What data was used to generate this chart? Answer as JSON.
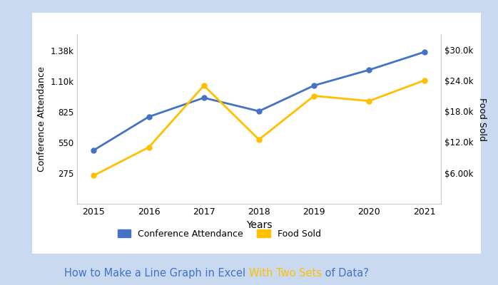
{
  "years": [
    2015,
    2016,
    2017,
    2018,
    2019,
    2020,
    2021
  ],
  "conference_attendance": [
    480,
    780,
    950,
    830,
    1060,
    1200,
    1360
  ],
  "food_sold": [
    5500,
    11000,
    23000,
    12500,
    21000,
    20000,
    24000
  ],
  "line1_color": "#4472C4",
  "line2_color": "#FFC000",
  "ylabel_left": "Conference Attendance",
  "ylabel_right": "Food Sold",
  "xlabel": "Years",
  "ylim_left": [
    0,
    1520
  ],
  "ylim_right": [
    0,
    33000
  ],
  "yticks_left": [
    275,
    550,
    825,
    1100,
    1375
  ],
  "ytick_labels_left": [
    "275",
    "550",
    "825",
    "1.10k",
    "1.38k"
  ],
  "yticks_right": [
    6000,
    12000,
    18000,
    24000,
    30000
  ],
  "ytick_labels_right": [
    "$6.00k",
    "$12.0k",
    "$18.0k",
    "$24.0k",
    "$30.0k"
  ],
  "legend_label1": "Conference Attendance",
  "legend_label2": "Food Sold",
  "title_part1": "How to Make a Line Graph in Excel ",
  "title_part2": "With Two Sets",
  "title_part3": " of Data?",
  "title_color1": "#4472C4",
  "title_color2": "#FFC000",
  "title_color3": "#4472C4",
  "background_color": "#FFFFFF",
  "outer_bg_color": "#C9D9F0",
  "marker_style": "o",
  "marker_size": 5,
  "line_width": 2,
  "spine_color": "#CCCCCC"
}
